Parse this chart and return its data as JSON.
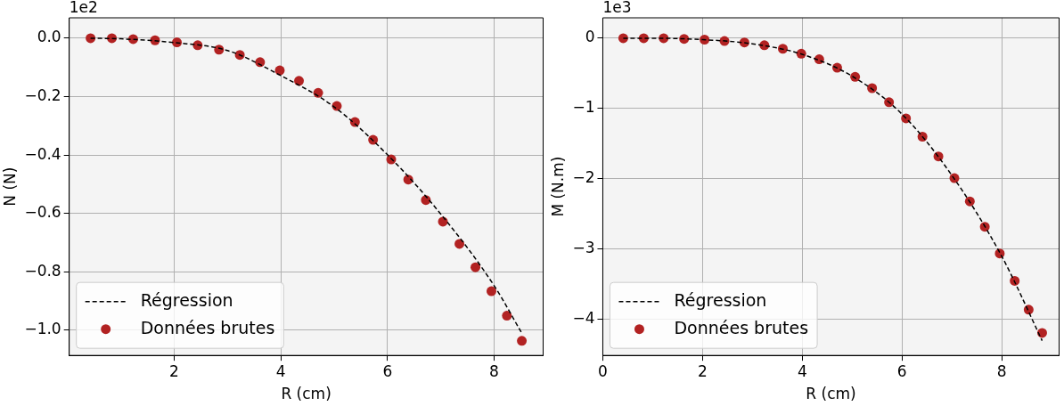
{
  "chart_data": [
    {
      "type": "scatter",
      "xlabel": "R (cm)",
      "ylabel": "N (N)",
      "annotations": [
        "1e2"
      ],
      "xlim": [
        0.03,
        8.92
      ],
      "ylim": [
        -1.086,
        0.07
      ],
      "xticks": [
        2,
        4,
        6,
        8
      ],
      "yticks": [
        {
          "value": 0,
          "label": "0.0"
        },
        {
          "value": -0.2,
          "label": "−0.2"
        },
        {
          "value": -0.4,
          "label": "−0.4"
        },
        {
          "value": -0.6,
          "label": "−0.6"
        },
        {
          "value": -0.8,
          "label": "−0.8"
        },
        {
          "value": -1.0,
          "label": "−1.0"
        }
      ],
      "grid": true,
      "legend": "bottom left",
      "series": [
        {
          "name": "Régression",
          "type": "line",
          "color": "#000000",
          "line_style": "dashed",
          "marker": "none",
          "x": [
            0.43,
            1,
            2,
            3,
            4,
            5,
            6,
            7,
            8,
            8.52
          ],
          "values": [
            0,
            -0.002,
            -0.015,
            -0.042,
            -0.128,
            -0.235,
            -0.399,
            -0.602,
            -0.847,
            -1.01
          ]
        },
        {
          "name": "Données brutes",
          "type": "scatter",
          "color": "#b22222",
          "marker": "circle",
          "x": [
            0.43,
            0.83,
            1.23,
            1.64,
            2.05,
            2.44,
            2.84,
            3.23,
            3.61,
            3.98,
            4.34,
            4.7,
            5.05,
            5.39,
            5.73,
            6.07,
            6.39,
            6.72,
            7.04,
            7.35,
            7.65,
            7.95,
            8.24,
            8.52
          ],
          "values": [
            0,
            0,
            -0.003,
            -0.007,
            -0.014,
            -0.024,
            -0.039,
            -0.057,
            -0.082,
            -0.11,
            -0.146,
            -0.187,
            -0.232,
            -0.287,
            -0.348,
            -0.415,
            -0.484,
            -0.554,
            -0.628,
            -0.704,
            -0.784,
            -0.866,
            -0.95,
            -1.036
          ]
        }
      ]
    },
    {
      "type": "scatter",
      "xlabel": "R (cm)",
      "ylabel": "M (N.m)",
      "annotations": [
        "1e3"
      ],
      "xlim": [
        0,
        9.15
      ],
      "ylim": [
        -4.51,
        0.29
      ],
      "xticks": [
        0,
        2,
        4,
        6,
        8
      ],
      "yticks": [
        0,
        {
          "value": -1,
          "label": "−1"
        },
        {
          "value": -2,
          "label": "−2"
        },
        {
          "value": -3,
          "label": "−3"
        },
        {
          "value": -4,
          "label": "−4"
        }
      ],
      "grid": true,
      "legend": "bottom left",
      "series": [
        {
          "name": "Régression",
          "type": "line",
          "color": "#000000",
          "line_style": "dashed",
          "marker": "none",
          "x": [
            0.41,
            1,
            2,
            3,
            4,
            5,
            6,
            7,
            8,
            8.81
          ],
          "values": [
            0,
            0,
            -0.02,
            -0.08,
            -0.23,
            -0.54,
            -1.08,
            -1.95,
            -3.1,
            -4.3
          ]
        },
        {
          "name": "Données brutes",
          "type": "scatter",
          "color": "#b22222",
          "marker": "circle",
          "x": [
            0.41,
            0.82,
            1.22,
            1.63,
            2.04,
            2.44,
            2.84,
            3.24,
            3.61,
            3.98,
            4.34,
            4.7,
            5.06,
            5.4,
            5.74,
            6.08,
            6.41,
            6.73,
            7.05,
            7.36,
            7.66,
            7.96,
            8.26,
            8.54,
            8.81
          ],
          "values": [
            0,
            0,
            0,
            -0.01,
            -0.02,
            -0.04,
            -0.06,
            -0.1,
            -0.15,
            -0.22,
            -0.3,
            -0.42,
            -0.55,
            -0.71,
            -0.91,
            -1.14,
            -1.4,
            -1.68,
            -1.99,
            -2.32,
            -2.68,
            -3.06,
            -3.45,
            -3.86,
            -4.19
          ]
        }
      ]
    }
  ]
}
